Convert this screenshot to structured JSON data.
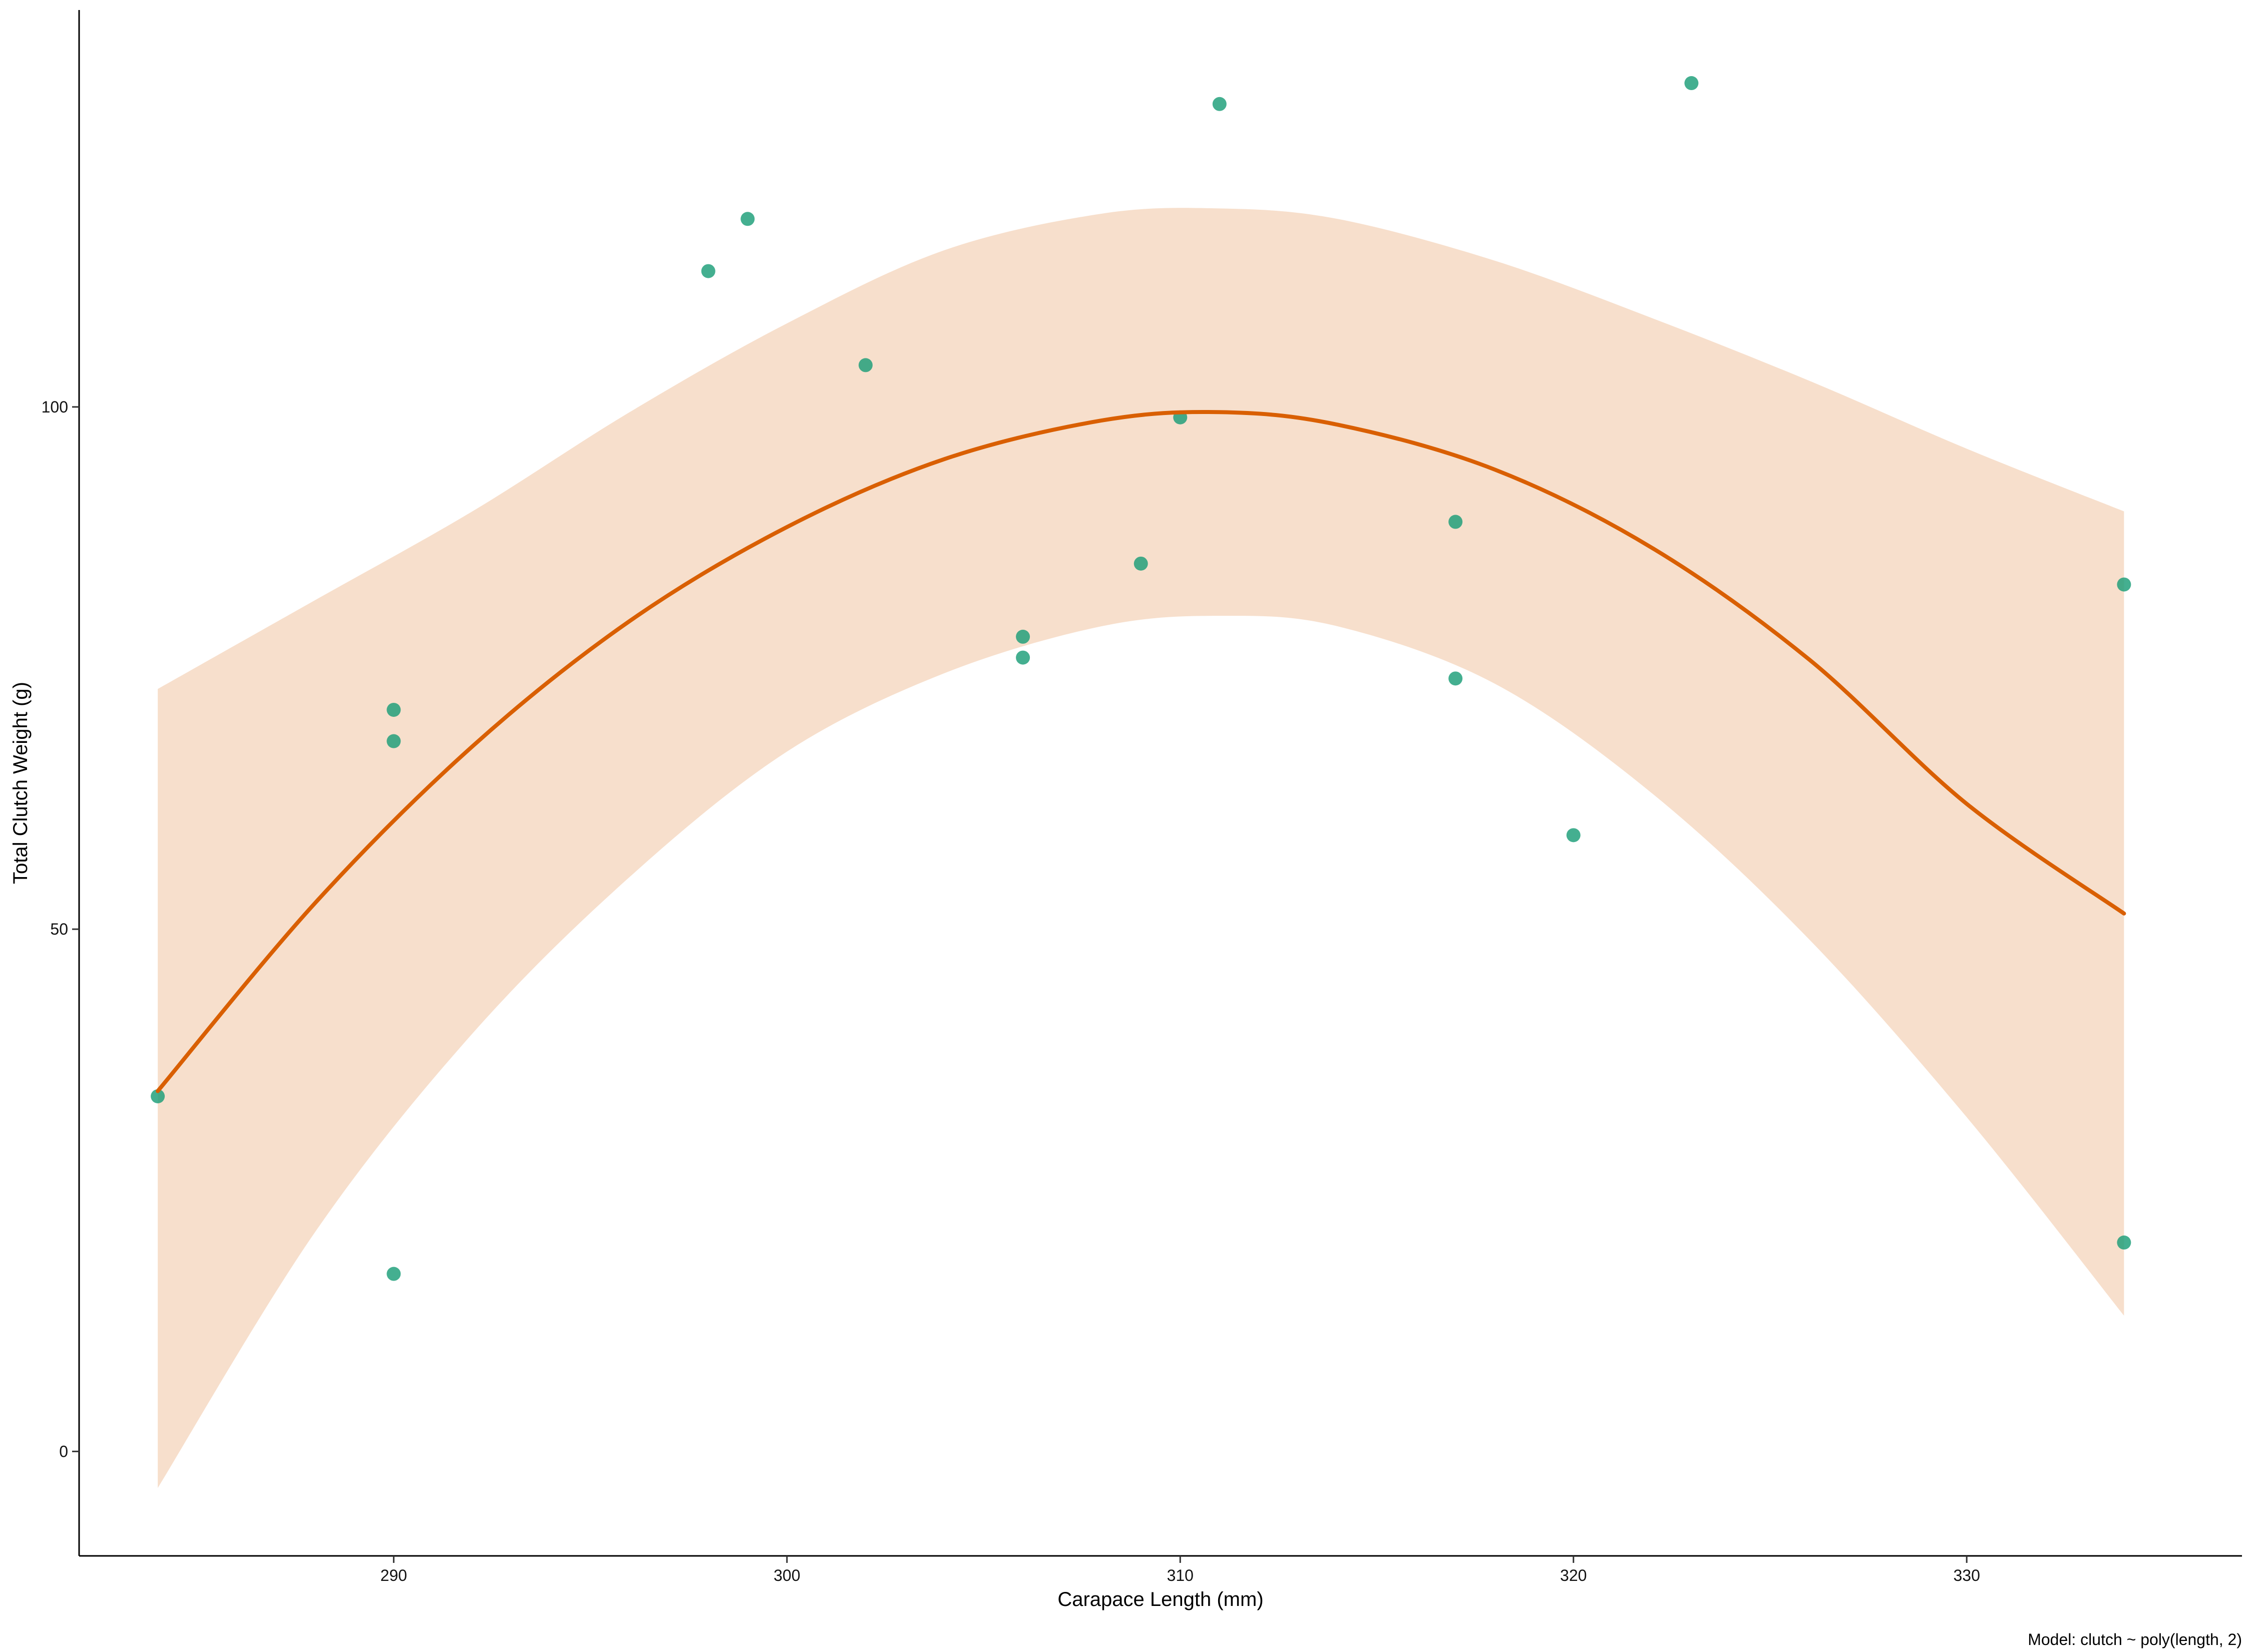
{
  "chart_data": {
    "type": "scatter",
    "xlabel": "Carapace Length (mm)",
    "ylabel": "Total Clutch Weight (g)",
    "caption": "Model: clutch ~ poly(length, 2)",
    "xlim": [
      282,
      337
    ],
    "ylim": [
      -10,
      138
    ],
    "x_ticks": [
      290,
      300,
      310,
      320,
      330
    ],
    "y_ticks": [
      0,
      50,
      100
    ],
    "grid": false,
    "legend": "none",
    "colors": {
      "points": "#1b9e77",
      "fit_line": "#d95f02",
      "confidence_band": "#f7dfcc",
      "axis": "#000000"
    },
    "points": [
      {
        "x": 284,
        "y": 34
      },
      {
        "x": 290,
        "y": 71
      },
      {
        "x": 290,
        "y": 68
      },
      {
        "x": 290,
        "y": 17
      },
      {
        "x": 298,
        "y": 113
      },
      {
        "x": 299,
        "y": 118
      },
      {
        "x": 302,
        "y": 104
      },
      {
        "x": 306,
        "y": 78
      },
      {
        "x": 306,
        "y": 76
      },
      {
        "x": 309,
        "y": 85
      },
      {
        "x": 310,
        "y": 99
      },
      {
        "x": 311,
        "y": 129
      },
      {
        "x": 317,
        "y": 89
      },
      {
        "x": 317,
        "y": 74
      },
      {
        "x": 320,
        "y": 59
      },
      {
        "x": 323,
        "y": 131
      },
      {
        "x": 334,
        "y": 83
      },
      {
        "x": 334,
        "y": 20
      }
    ],
    "fit": {
      "x": [
        284,
        288,
        292,
        296,
        300,
        304,
        308,
        311,
        314,
        318,
        322,
        326,
        330,
        334
      ],
      "y": [
        34.5,
        52.5,
        67.5,
        79.5,
        88.5,
        95,
        98.7,
        99.5,
        98.3,
        94,
        86.5,
        75.8,
        62,
        51.5
      ],
      "lower": [
        -3.5,
        21,
        40,
        55,
        67,
        74.5,
        79,
        80,
        79,
        73.5,
        63,
        49,
        32,
        13
      ],
      "upper": [
        73,
        81.5,
        90,
        99.5,
        108,
        115,
        118.5,
        119,
        118,
        114,
        108.5,
        102.5,
        96,
        90
      ]
    }
  }
}
